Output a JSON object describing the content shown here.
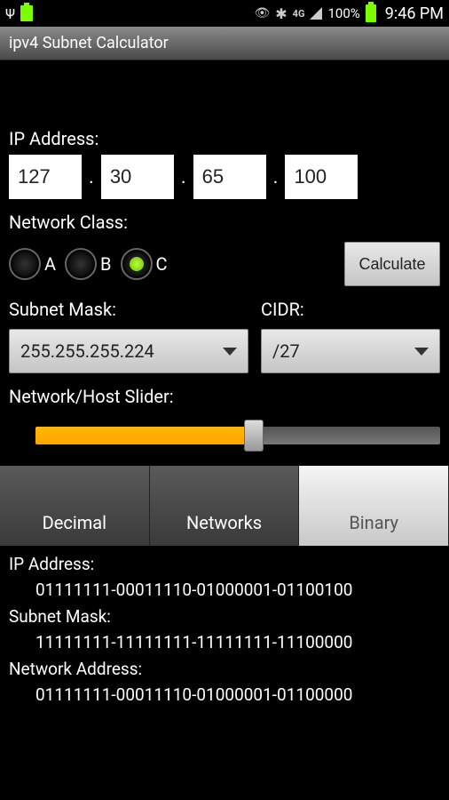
{
  "status": {
    "battery_pct": "100%",
    "carrier": "4G",
    "time": "9:46 PM"
  },
  "app_title": "ipv4 Subnet Calculator",
  "labels": {
    "ip_address": "IP Address:",
    "network_class": "Network Class:",
    "subnet_mask": "Subnet Mask:",
    "cidr": "CIDR:",
    "slider": "Network/Host Slider:",
    "calculate": "Calculate"
  },
  "ip": {
    "o1": "127",
    "o2": "30",
    "o3": "65",
    "o4": "100"
  },
  "classes": {
    "a": "A",
    "b": "B",
    "c": "C",
    "selected": "C"
  },
  "subnet_mask_value": "255.255.255.224",
  "cidr_value": "/27",
  "slider": {
    "fill_pct": 54,
    "thumb_pct": 54
  },
  "tabs": {
    "decimal": "Decimal",
    "networks": "Networks",
    "binary": "Binary",
    "active": "binary"
  },
  "results": {
    "ip_label": "IP Address:",
    "ip_value": "01111111-00011110-01000001-01100100",
    "mask_label": "Subnet Mask:",
    "mask_value": "11111111-11111111-11111111-11100000",
    "net_label": "Network Address:",
    "net_value": "01111111-00011110-01000001-01100000"
  },
  "colors": {
    "accent_slider": "#ffa500",
    "radio_selected": "#8ee000",
    "background": "#000000",
    "text": "#ffffff"
  }
}
